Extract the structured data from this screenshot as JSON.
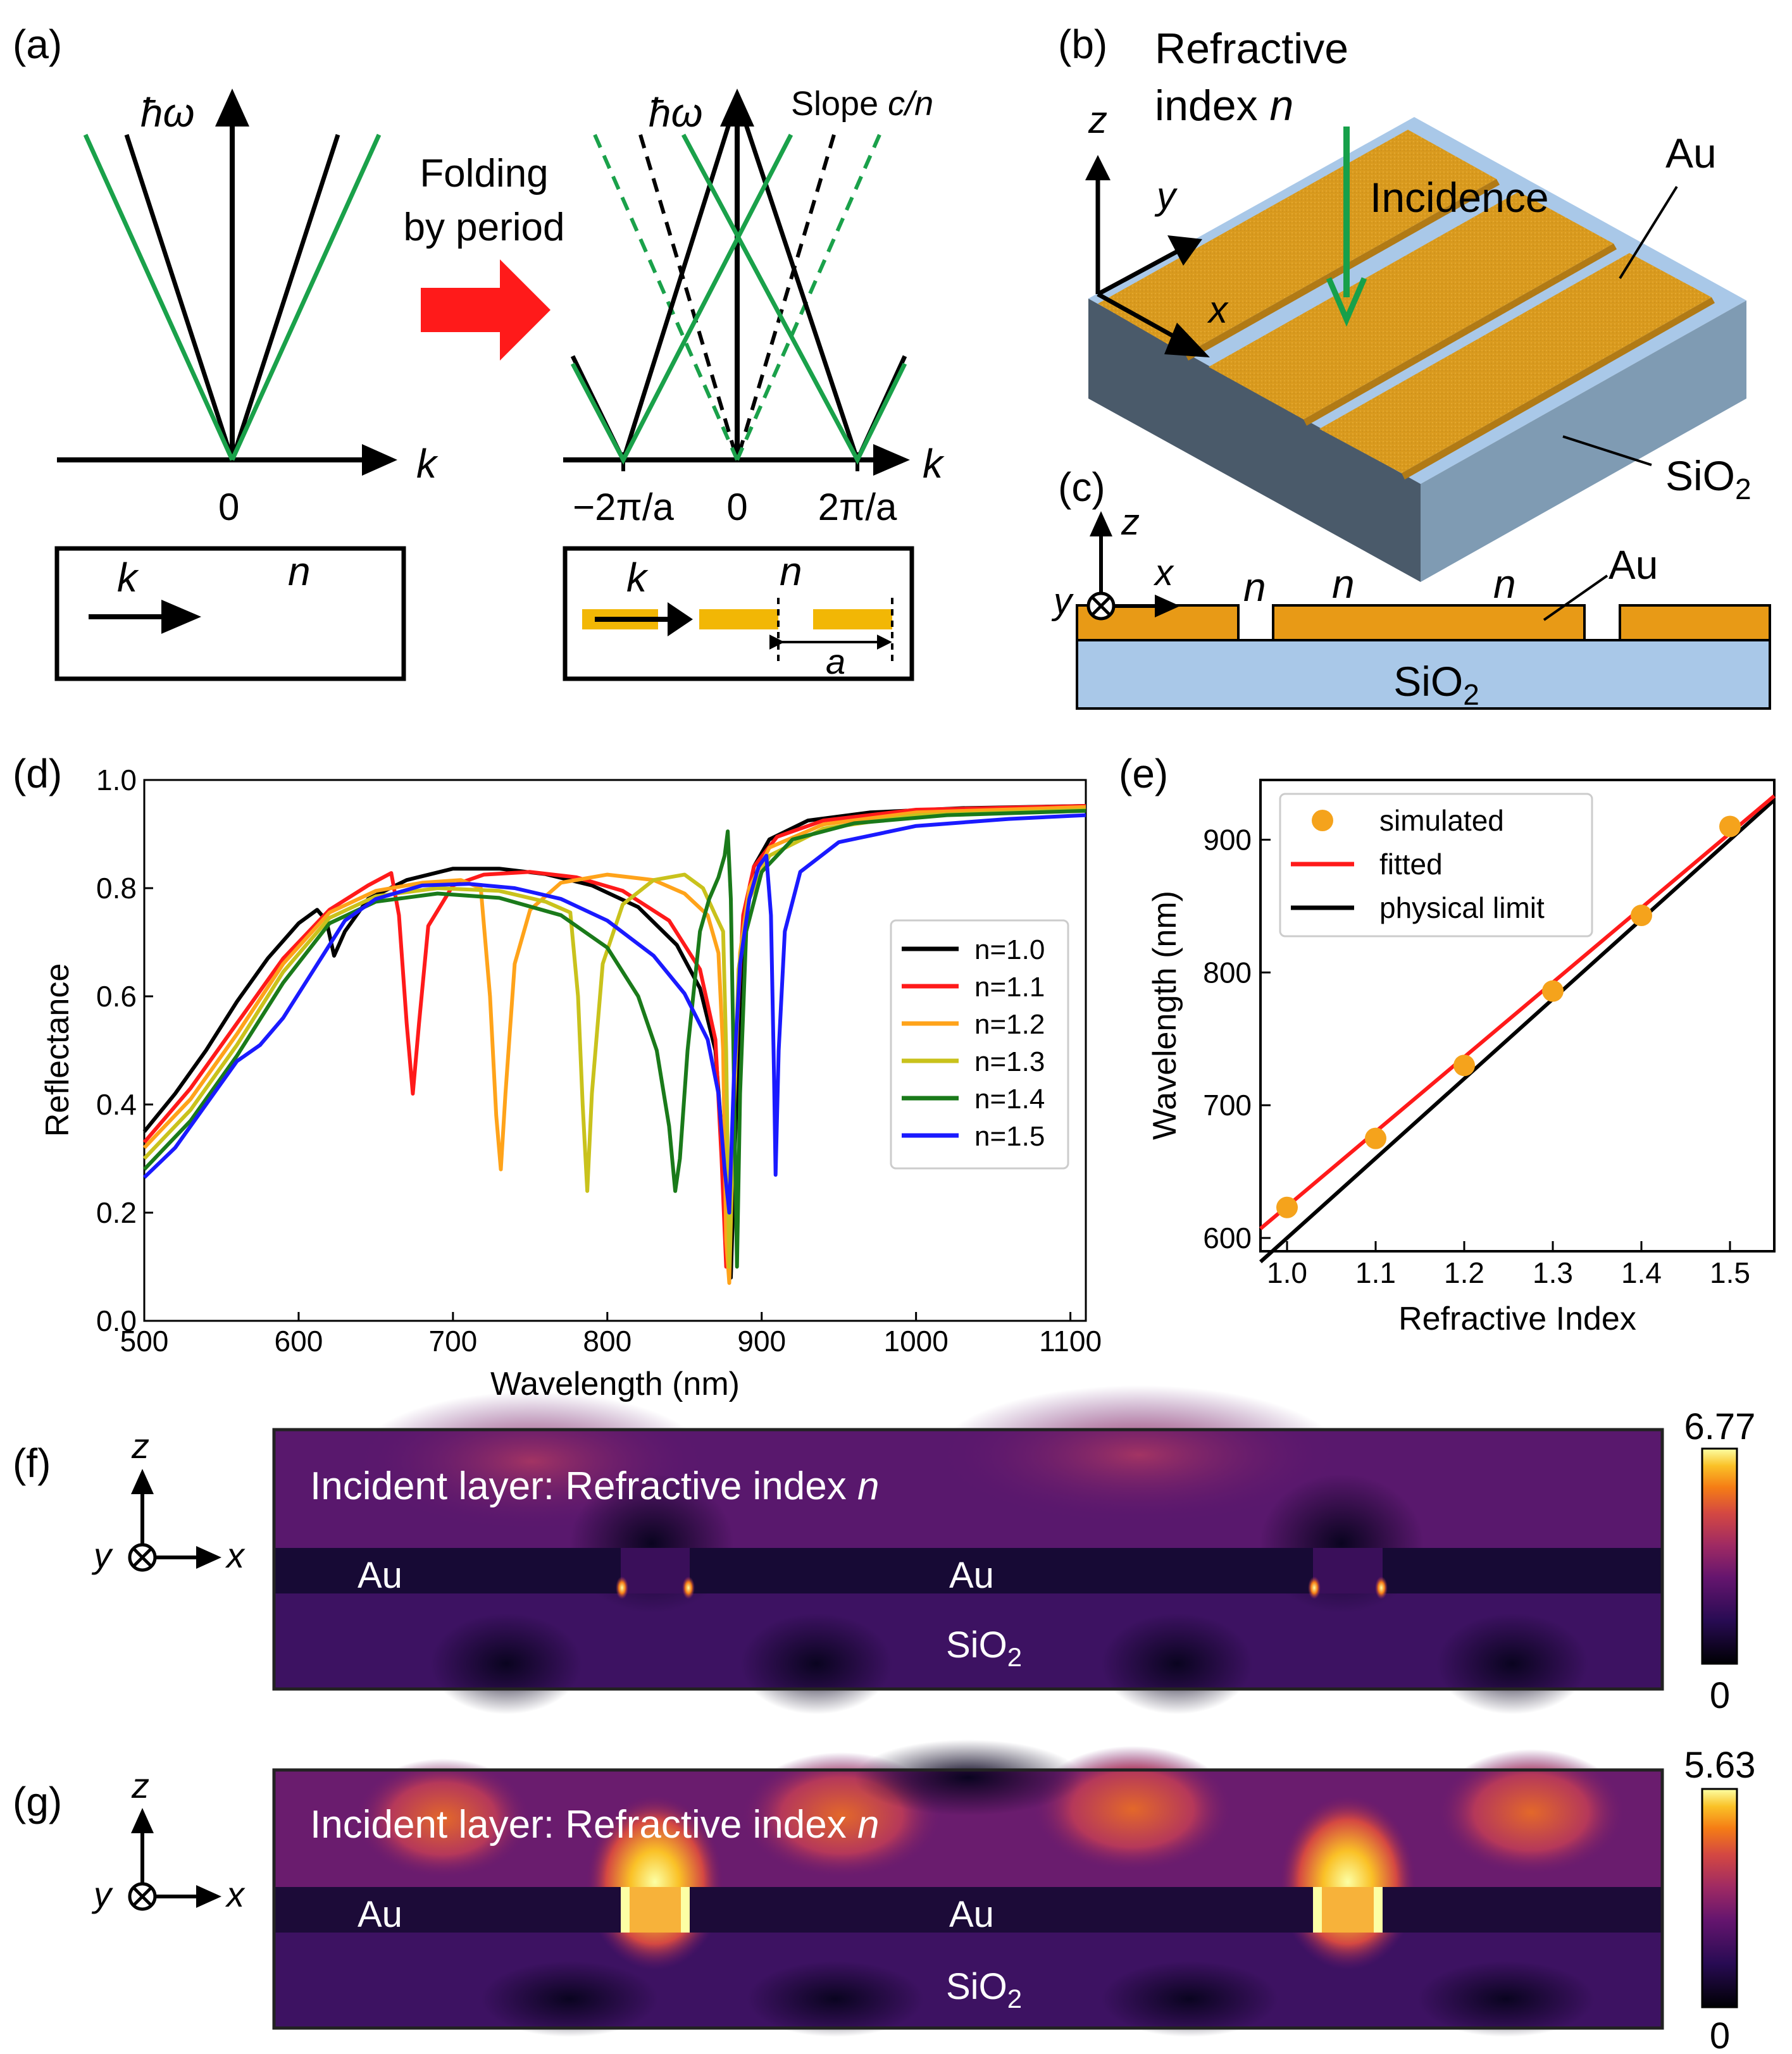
{
  "panels": {
    "a": "(a)",
    "b": "(b)",
    "c": "(c)",
    "d": "(d)",
    "e": "(e)",
    "f": "(f)",
    "g": "(g)"
  },
  "panel_a": {
    "y_axis": "ħω",
    "x_axis": "k",
    "zero": "0",
    "folding_line1": "Folding",
    "folding_line2": "by period",
    "slope_prefix": "Slope ",
    "slope_value": "c/n",
    "tick_neg": "−2π/a",
    "tick_zero": "0",
    "tick_pos": "2π/a",
    "box_k": "k",
    "box_n": "n",
    "period": "a"
  },
  "panel_b": {
    "ri_line1": "Refractive",
    "ri_line2_prefix": "index ",
    "ri_n": "n",
    "incidence": "Incidence",
    "au": "Au",
    "sio2": "SiO",
    "sio2_sub": "2",
    "axis_x": "x",
    "axis_y": "y",
    "axis_z": "z"
  },
  "panel_c": {
    "axis_x": "x",
    "axis_y": "y",
    "axis_z": "z",
    "n": "n",
    "au": "Au",
    "sio2": "SiO",
    "sio2_sub": "2"
  },
  "panel_f": {
    "title_prefix": "Incident layer: Refractive index ",
    "title_n": "n",
    "au_left": "Au",
    "au_mid": "Au",
    "sio2": "SiO",
    "sio2_sub": "2",
    "cbar_max": "6.77",
    "cbar_min": "0",
    "axis_x": "x",
    "axis_y": "y",
    "axis_z": "z"
  },
  "panel_g": {
    "title_prefix": "Incident layer: Refractive index ",
    "title_n": "n",
    "au_left": "Au",
    "au_mid": "Au",
    "sio2": "SiO",
    "sio2_sub": "2",
    "cbar_max": "5.63",
    "cbar_min": "0",
    "axis_x": "x",
    "axis_y": "y",
    "axis_z": "z"
  },
  "colors": {
    "black_line": "#000000",
    "green_line": "#1aa14a",
    "gold": "#f2b705",
    "arrow_red": "#ff1a1a",
    "au_orange": "#e89a16",
    "sio2_blue": "#a9c8e8",
    "incidence_green": "#17a04a"
  },
  "chart_data": [
    {
      "id": "d",
      "type": "line",
      "title": "",
      "xlabel": "Wavelength (nm)",
      "ylabel": "Reflectance",
      "xlim": [
        500,
        1110
      ],
      "ylim": [
        0.0,
        1.0
      ],
      "xticks": [
        500,
        600,
        700,
        800,
        900,
        1000,
        1100
      ],
      "yticks": [
        "0.0",
        "0.2",
        "0.4",
        "0.6",
        "0.8",
        "1.0"
      ],
      "legend_position": "center-right",
      "series": [
        {
          "name": "n=1.0",
          "color": "#000000",
          "points": [
            [
              500,
              0.35
            ],
            [
              520,
              0.42
            ],
            [
              540,
              0.5
            ],
            [
              560,
              0.59
            ],
            [
              580,
              0.67
            ],
            [
              600,
              0.735
            ],
            [
              612,
              0.76
            ],
            [
              618,
              0.74
            ],
            [
              623,
              0.675
            ],
            [
              630,
              0.72
            ],
            [
              645,
              0.78
            ],
            [
              670,
              0.815
            ],
            [
              700,
              0.836
            ],
            [
              730,
              0.836
            ],
            [
              760,
              0.826
            ],
            [
              790,
              0.805
            ],
            [
              820,
              0.765
            ],
            [
              845,
              0.695
            ],
            [
              860,
              0.615
            ],
            [
              870,
              0.5
            ],
            [
              874,
              0.35
            ],
            [
              877,
              0.15
            ],
            [
              880,
              0.08
            ],
            [
              883,
              0.35
            ],
            [
              886,
              0.6
            ],
            [
              890,
              0.75
            ],
            [
              895,
              0.84
            ],
            [
              905,
              0.89
            ],
            [
              930,
              0.925
            ],
            [
              970,
              0.94
            ],
            [
              1030,
              0.948
            ],
            [
              1110,
              0.952
            ]
          ]
        },
        {
          "name": "n=1.1",
          "color": "#ff1a1a",
          "points": [
            [
              500,
              0.33
            ],
            [
              530,
              0.43
            ],
            [
              560,
              0.55
            ],
            [
              590,
              0.67
            ],
            [
              620,
              0.76
            ],
            [
              645,
              0.805
            ],
            [
              660,
              0.828
            ],
            [
              665,
              0.75
            ],
            [
              670,
              0.55
            ],
            [
              674,
              0.42
            ],
            [
              678,
              0.55
            ],
            [
              684,
              0.73
            ],
            [
              700,
              0.805
            ],
            [
              720,
              0.825
            ],
            [
              750,
              0.83
            ],
            [
              780,
              0.82
            ],
            [
              810,
              0.795
            ],
            [
              840,
              0.74
            ],
            [
              860,
              0.65
            ],
            [
              870,
              0.52
            ],
            [
              874,
              0.3
            ],
            [
              877,
              0.1
            ],
            [
              880,
              0.2
            ],
            [
              884,
              0.55
            ],
            [
              888,
              0.75
            ],
            [
              895,
              0.84
            ],
            [
              910,
              0.895
            ],
            [
              940,
              0.925
            ],
            [
              1000,
              0.945
            ],
            [
              1110,
              0.952
            ]
          ]
        },
        {
          "name": "n=1.2",
          "color": "#ffa31a",
          "points": [
            [
              500,
              0.32
            ],
            [
              530,
              0.41
            ],
            [
              560,
              0.53
            ],
            [
              590,
              0.66
            ],
            [
              620,
              0.755
            ],
            [
              650,
              0.795
            ],
            [
              680,
              0.81
            ],
            [
              705,
              0.815
            ],
            [
              718,
              0.8
            ],
            [
              724,
              0.6
            ],
            [
              728,
              0.38
            ],
            [
              731,
              0.28
            ],
            [
              734,
              0.42
            ],
            [
              740,
              0.66
            ],
            [
              750,
              0.76
            ],
            [
              770,
              0.81
            ],
            [
              800,
              0.825
            ],
            [
              830,
              0.815
            ],
            [
              850,
              0.79
            ],
            [
              865,
              0.75
            ],
            [
              872,
              0.68
            ],
            [
              875,
              0.5
            ],
            [
              877,
              0.15
            ],
            [
              879,
              0.07
            ],
            [
              882,
              0.4
            ],
            [
              886,
              0.68
            ],
            [
              892,
              0.8
            ],
            [
              905,
              0.875
            ],
            [
              940,
              0.918
            ],
            [
              1000,
              0.94
            ],
            [
              1110,
              0.95
            ]
          ]
        },
        {
          "name": "n=1.3",
          "color": "#c9c21c",
          "points": [
            [
              500,
              0.3
            ],
            [
              530,
              0.39
            ],
            [
              560,
              0.51
            ],
            [
              590,
              0.645
            ],
            [
              620,
              0.745
            ],
            [
              650,
              0.785
            ],
            [
              690,
              0.8
            ],
            [
              730,
              0.795
            ],
            [
              760,
              0.775
            ],
            [
              776,
              0.755
            ],
            [
              781,
              0.6
            ],
            [
              784,
              0.4
            ],
            [
              787,
              0.24
            ],
            [
              790,
              0.42
            ],
            [
              797,
              0.66
            ],
            [
              810,
              0.77
            ],
            [
              830,
              0.815
            ],
            [
              850,
              0.825
            ],
            [
              862,
              0.8
            ],
            [
              870,
              0.75
            ],
            [
              875,
              0.72
            ],
            [
              877,
              0.5
            ],
            [
              879,
              0.1
            ],
            [
              881,
              0.3
            ],
            [
              885,
              0.65
            ],
            [
              892,
              0.78
            ],
            [
              905,
              0.86
            ],
            [
              940,
              0.91
            ],
            [
              1000,
              0.935
            ],
            [
              1110,
              0.945
            ]
          ]
        },
        {
          "name": "n=1.4",
          "color": "#1a7a1a",
          "points": [
            [
              500,
              0.28
            ],
            [
              530,
              0.37
            ],
            [
              560,
              0.49
            ],
            [
              590,
              0.625
            ],
            [
              620,
              0.735
            ],
            [
              650,
              0.775
            ],
            [
              690,
              0.79
            ],
            [
              730,
              0.782
            ],
            [
              770,
              0.75
            ],
            [
              800,
              0.69
            ],
            [
              820,
              0.6
            ],
            [
              832,
              0.5
            ],
            [
              840,
              0.36
            ],
            [
              844,
              0.24
            ],
            [
              847,
              0.3
            ],
            [
              852,
              0.5
            ],
            [
              860,
              0.72
            ],
            [
              866,
              0.78
            ],
            [
              872,
              0.82
            ],
            [
              876,
              0.86
            ],
            [
              878,
              0.905
            ],
            [
              880,
              0.78
            ],
            [
              882,
              0.45
            ],
            [
              884,
              0.1
            ],
            [
              886,
              0.42
            ],
            [
              890,
              0.72
            ],
            [
              900,
              0.83
            ],
            [
              920,
              0.89
            ],
            [
              960,
              0.92
            ],
            [
              1020,
              0.935
            ],
            [
              1110,
              0.943
            ]
          ]
        },
        {
          "name": "n=1.5",
          "color": "#1a1aff",
          "points": [
            [
              500,
              0.265
            ],
            [
              520,
              0.32
            ],
            [
              540,
              0.4
            ],
            [
              560,
              0.48
            ],
            [
              575,
              0.51
            ],
            [
              590,
              0.56
            ],
            [
              610,
              0.65
            ],
            [
              630,
              0.74
            ],
            [
              650,
              0.78
            ],
            [
              680,
              0.805
            ],
            [
              710,
              0.808
            ],
            [
              740,
              0.8
            ],
            [
              770,
              0.78
            ],
            [
              800,
              0.74
            ],
            [
              830,
              0.675
            ],
            [
              850,
              0.605
            ],
            [
              865,
              0.52
            ],
            [
              872,
              0.42
            ],
            [
              876,
              0.28
            ],
            [
              879,
              0.2
            ],
            [
              882,
              0.45
            ],
            [
              886,
              0.66
            ],
            [
              892,
              0.78
            ],
            [
              898,
              0.84
            ],
            [
              903,
              0.86
            ],
            [
              906,
              0.75
            ],
            [
              908,
              0.45
            ],
            [
              909,
              0.27
            ],
            [
              911,
              0.5
            ],
            [
              915,
              0.72
            ],
            [
              925,
              0.83
            ],
            [
              950,
              0.885
            ],
            [
              1000,
              0.915
            ],
            [
              1060,
              0.928
            ],
            [
              1110,
              0.935
            ]
          ]
        }
      ]
    },
    {
      "id": "e",
      "type": "scatter",
      "title": "",
      "xlabel": "Refractive Index",
      "ylabel": "Wavelength (nm)",
      "xlim": [
        0.97,
        1.55
      ],
      "ylim": [
        590,
        945
      ],
      "xticks": [
        "1.0",
        "1.1",
        "1.2",
        "1.3",
        "1.4",
        "1.5"
      ],
      "yticks": [
        "600",
        "700",
        "800",
        "900"
      ],
      "legend_position": "top-left",
      "simulated": {
        "name": "simulated",
        "color": "#f5a31c",
        "x": [
          1.0,
          1.1,
          1.2,
          1.3,
          1.4,
          1.5
        ],
        "y": [
          623,
          675,
          730,
          786,
          843,
          910
        ]
      },
      "fitted": {
        "name": "fitted",
        "color": "#ff1a1a",
        "x": [
          0.97,
          1.55
        ],
        "y": [
          607,
          933
        ]
      },
      "physical_limit": {
        "name": "physical limit",
        "color": "#000000",
        "x": [
          0.97,
          1.55
        ],
        "y": [
          582,
          930
        ]
      }
    }
  ]
}
